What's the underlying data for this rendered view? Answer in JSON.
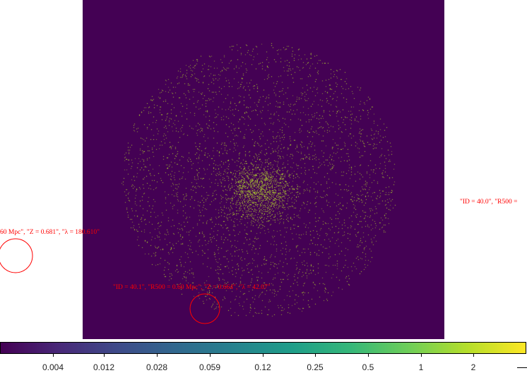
{
  "chart_data": {
    "type": "heatmap",
    "title": "",
    "xlabel": "",
    "ylabel": "",
    "colormap": "viridis",
    "background_color": "#440154",
    "point_color": "#b5de2b",
    "scale": "log",
    "colorbar": {
      "orientation": "horizontal",
      "placement": "bottom",
      "ticks": [
        "0.004",
        "0.012",
        "0.028",
        "0.059",
        "0.12",
        "0.25",
        "0.5",
        "1",
        "2"
      ]
    },
    "annotations": [
      {
        "text": "\"ID = 40.0\", \"R500 = ",
        "color": "#ff0000"
      },
      {
        "text": "60 Mpc\", \"Z = 0.681\", \"λ = 180.610\"",
        "color": "#ff0000"
      },
      {
        "text": "\"ID = 40.1\", \"R500 = 0.60 Mpc\", \"Z = 0.664\", \"λ = 42.07\"",
        "color": "#ff0000"
      }
    ],
    "markers": [
      {
        "shape": "circle",
        "color": "#ff0000"
      },
      {
        "shape": "circle",
        "color": "#ff0000"
      }
    ]
  }
}
